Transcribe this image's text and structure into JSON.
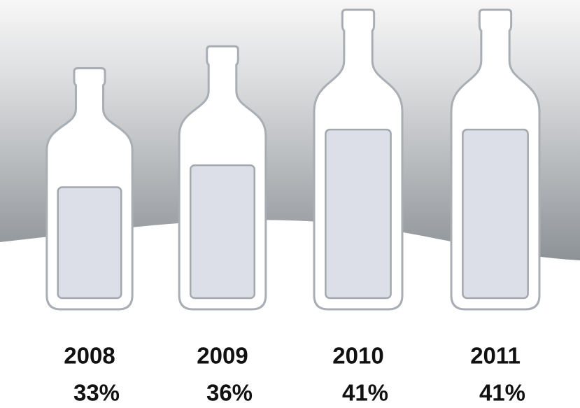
{
  "chart_data": {
    "type": "pictograph",
    "categories": [
      "2008",
      "2009",
      "2010",
      "2011"
    ],
    "values": [
      33,
      36,
      41,
      41
    ],
    "value_labels": [
      "33%",
      "36%",
      "41%",
      "41%"
    ]
  }
}
